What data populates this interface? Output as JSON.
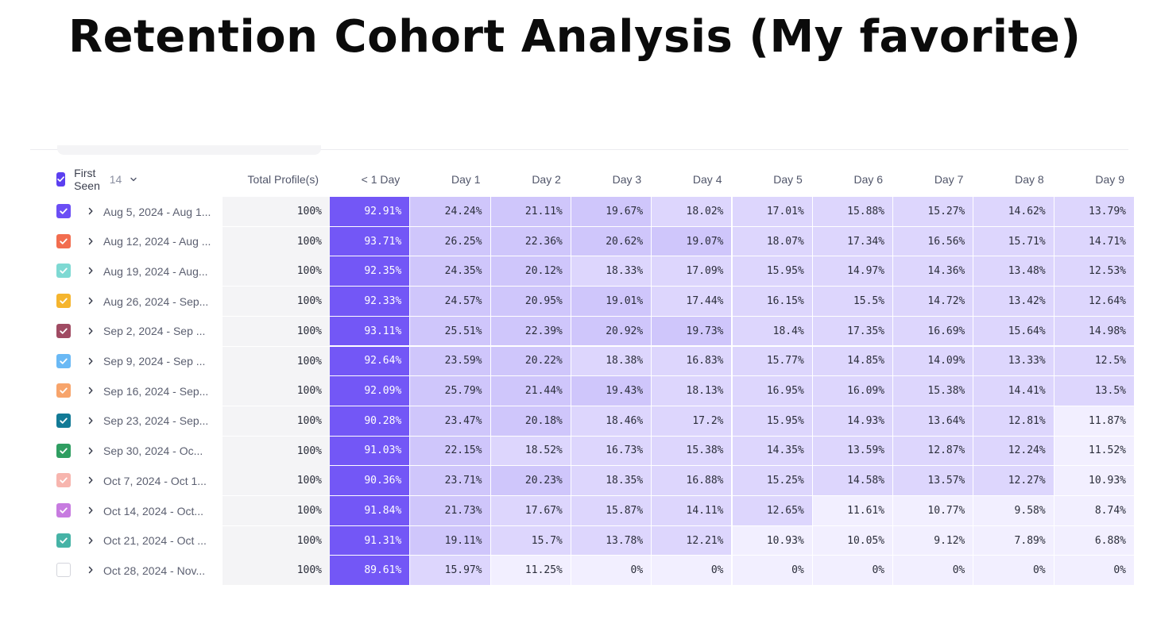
{
  "title": "Retention Cohort Analysis (My favorite)",
  "table": {
    "first_seen_label": "First Seen",
    "first_seen_count": "14",
    "total_header": "Total Profile(s)",
    "day_headers": [
      "< 1 Day",
      "Day 1",
      "Day 2",
      "Day 3",
      "Day 4",
      "Day 5",
      "Day 6",
      "Day 7",
      "Day 8",
      "Day 9"
    ],
    "rows": [
      {
        "label": "Aug 5, 2024 - Aug 1...",
        "color": "#6b4ef5",
        "checked": true,
        "total": "100%",
        "values": [
          "92.91%",
          "24.24%",
          "21.11%",
          "19.67%",
          "18.02%",
          "17.01%",
          "15.88%",
          "15.27%",
          "14.62%",
          "13.79%"
        ]
      },
      {
        "label": "Aug 12, 2024 - Aug ...",
        "color": "#f26d4f",
        "checked": true,
        "total": "100%",
        "values": [
          "93.71%",
          "26.25%",
          "22.36%",
          "20.62%",
          "19.07%",
          "18.07%",
          "17.34%",
          "16.56%",
          "15.71%",
          "14.71%"
        ]
      },
      {
        "label": "Aug 19, 2024 - Aug...",
        "color": "#7ed9d3",
        "checked": true,
        "total": "100%",
        "values": [
          "92.35%",
          "24.35%",
          "20.12%",
          "18.33%",
          "17.09%",
          "15.95%",
          "14.97%",
          "14.36%",
          "13.48%",
          "12.53%"
        ]
      },
      {
        "label": "Aug 26, 2024 - Sep...",
        "color": "#f5b52e",
        "checked": true,
        "total": "100%",
        "values": [
          "92.33%",
          "24.57%",
          "20.95%",
          "19.01%",
          "17.44%",
          "16.15%",
          "15.5%",
          "14.72%",
          "13.42%",
          "12.64%"
        ]
      },
      {
        "label": "Sep 2, 2024 - Sep ...",
        "color": "#a04b63",
        "checked": true,
        "total": "100%",
        "values": [
          "93.11%",
          "25.51%",
          "22.39%",
          "20.92%",
          "19.73%",
          "18.4%",
          "17.35%",
          "16.69%",
          "15.64%",
          "14.98%"
        ]
      },
      {
        "label": "Sep 9, 2024 - Sep ...",
        "color": "#6ab9f5",
        "checked": true,
        "total": "100%",
        "values": [
          "92.64%",
          "23.59%",
          "20.22%",
          "18.38%",
          "16.83%",
          "15.77%",
          "14.85%",
          "14.09%",
          "13.33%",
          "12.5%"
        ]
      },
      {
        "label": "Sep 16, 2024 - Sep...",
        "color": "#f7a46b",
        "checked": true,
        "total": "100%",
        "values": [
          "92.09%",
          "25.79%",
          "21.44%",
          "19.43%",
          "18.13%",
          "16.95%",
          "16.09%",
          "15.38%",
          "14.41%",
          "13.5%"
        ]
      },
      {
        "label": "Sep 23, 2024 - Sep...",
        "color": "#127a96",
        "checked": true,
        "total": "100%",
        "values": [
          "90.28%",
          "23.47%",
          "20.18%",
          "18.46%",
          "17.2%",
          "15.95%",
          "14.93%",
          "13.64%",
          "12.81%",
          "11.87%"
        ]
      },
      {
        "label": "Sep 30, 2024 - Oc...",
        "color": "#2f9e61",
        "checked": true,
        "total": "100%",
        "values": [
          "91.03%",
          "22.15%",
          "18.52%",
          "16.73%",
          "15.38%",
          "14.35%",
          "13.59%",
          "12.87%",
          "12.24%",
          "11.52%"
        ]
      },
      {
        "label": "Oct 7, 2024 - Oct 1...",
        "color": "#f7b5ae",
        "checked": true,
        "total": "100%",
        "values": [
          "90.36%",
          "23.71%",
          "20.23%",
          "18.35%",
          "16.88%",
          "15.25%",
          "14.58%",
          "13.57%",
          "12.27%",
          "10.93%"
        ]
      },
      {
        "label": "Oct 14, 2024 - Oct...",
        "color": "#c77be0",
        "checked": true,
        "total": "100%",
        "values": [
          "91.84%",
          "21.73%",
          "17.67%",
          "15.87%",
          "14.11%",
          "12.65%",
          "11.61%",
          "10.77%",
          "9.58%",
          "8.74%"
        ]
      },
      {
        "label": "Oct 21, 2024 - Oct ...",
        "color": "#46b3a6",
        "checked": true,
        "total": "100%",
        "values": [
          "91.31%",
          "19.11%",
          "15.7%",
          "13.78%",
          "12.21%",
          "10.93%",
          "10.05%",
          "9.12%",
          "7.89%",
          "6.88%"
        ]
      },
      {
        "label": "Oct 28, 2024 - Nov...",
        "color": "#ffffff",
        "checked": false,
        "total": "100%",
        "values": [
          "89.61%",
          "15.97%",
          "11.25%",
          "0%",
          "0%",
          "0%",
          "0%",
          "0%",
          "0%",
          "0%"
        ]
      }
    ]
  },
  "colors": {
    "header_checkbox": "#5b3ff0",
    "day0_fill": "#7357f6",
    "day0_text": "#ffffff",
    "heat_high": "#cfc6fb",
    "heat_mid": "#ddd6fd",
    "heat_low": "#f2efff",
    "total_bg": "#f4f4f6"
  }
}
